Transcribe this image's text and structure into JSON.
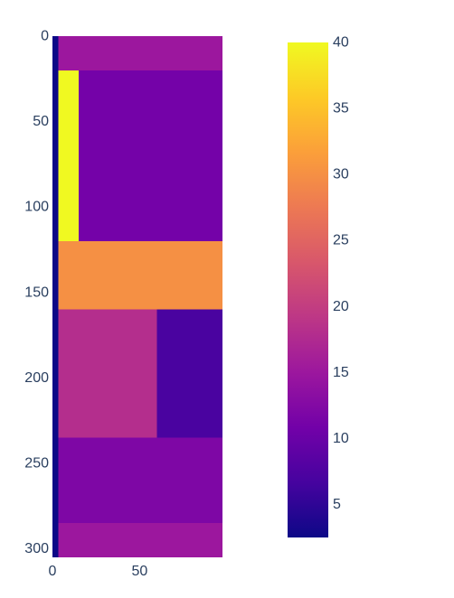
{
  "chart_data": {
    "type": "heatmap",
    "colorscale": "plasma",
    "colorscale_stops": [
      "#0d0887",
      "#46039f",
      "#7201a8",
      "#9c179e",
      "#bd3786",
      "#d8576b",
      "#ed7953",
      "#fb9f3a",
      "#fdca26",
      "#f0f921"
    ],
    "zmin": 2.5,
    "zmax": 40,
    "x_range": [
      0,
      97.5
    ],
    "y_range": [
      0,
      305
    ],
    "y_reversed": true,
    "x_ticks": [
      {
        "value": 0,
        "label": "0"
      },
      {
        "value": 50,
        "label": "50"
      }
    ],
    "y_ticks": [
      {
        "value": 0,
        "label": "0"
      },
      {
        "value": 50,
        "label": "50"
      },
      {
        "value": 100,
        "label": "100"
      },
      {
        "value": 150,
        "label": "150"
      },
      {
        "value": 200,
        "label": "200"
      },
      {
        "value": 250,
        "label": "250"
      },
      {
        "value": 300,
        "label": "300"
      }
    ],
    "colorbar_ticks": [
      {
        "value": 5,
        "label": "5"
      },
      {
        "value": 10,
        "label": "10"
      },
      {
        "value": 15,
        "label": "15"
      },
      {
        "value": 20,
        "label": "20"
      },
      {
        "value": 25,
        "label": "25"
      },
      {
        "value": 30,
        "label": "30"
      },
      {
        "value": 35,
        "label": "35"
      },
      {
        "value": 40,
        "label": "40"
      }
    ],
    "cells": [
      {
        "x0": 0,
        "x1": 3.5,
        "y0": 0,
        "y1": 305,
        "value": 2.5
      },
      {
        "x0": 3.5,
        "x1": 97.5,
        "y0": 0,
        "y1": 20,
        "value": 15
      },
      {
        "x0": 3.5,
        "x1": 15,
        "y0": 20,
        "y1": 120,
        "value": 40
      },
      {
        "x0": 15,
        "x1": 97.5,
        "y0": 20,
        "y1": 120,
        "value": 11
      },
      {
        "x0": 3.5,
        "x1": 97.5,
        "y0": 120,
        "y1": 160,
        "value": 30
      },
      {
        "x0": 3.5,
        "x1": 60,
        "y0": 160,
        "y1": 235,
        "value": 18
      },
      {
        "x0": 60,
        "x1": 97.5,
        "y0": 160,
        "y1": 235,
        "value": 7
      },
      {
        "x0": 3.5,
        "x1": 97.5,
        "y0": 235,
        "y1": 285,
        "value": 12
      },
      {
        "x0": 3.5,
        "x1": 97.5,
        "y0": 285,
        "y1": 305,
        "value": 15
      }
    ]
  }
}
